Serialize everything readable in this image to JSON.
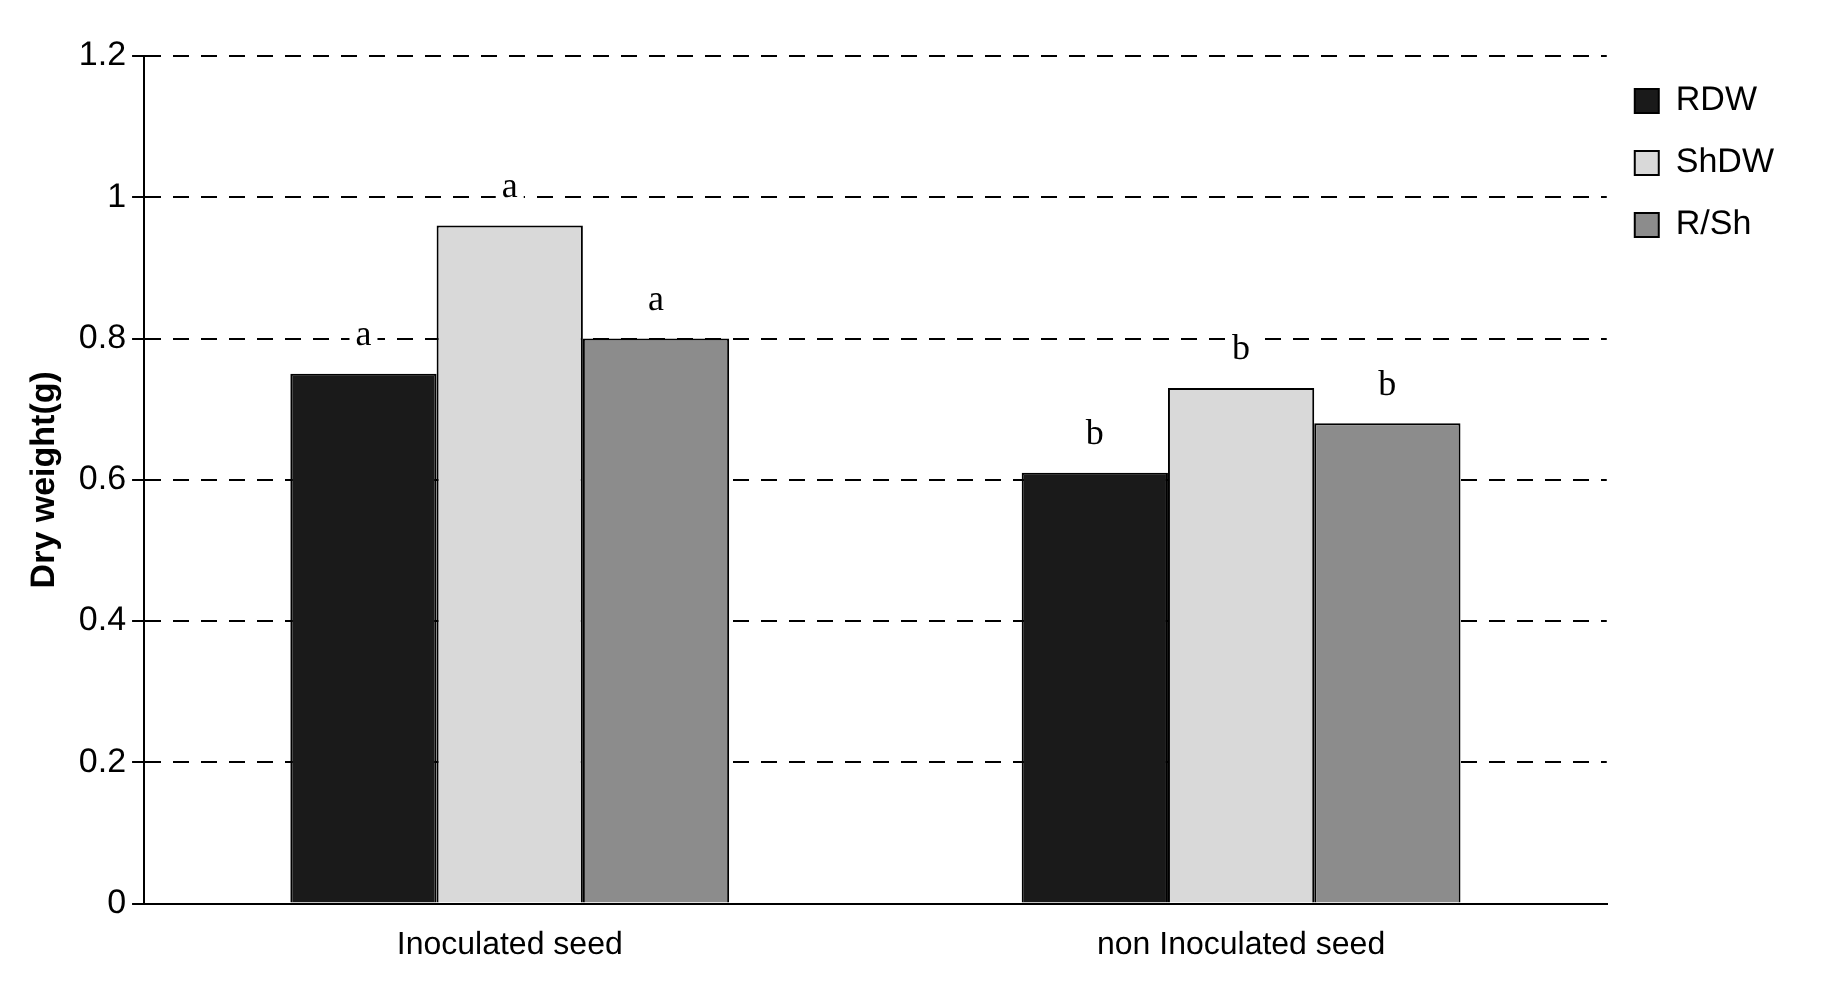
{
  "chart_data": {
    "type": "bar",
    "ylabel": "Dry weight(g)",
    "categories": [
      "Inoculated seed",
      "non Inoculated seed"
    ],
    "series": [
      {
        "name": "RDW",
        "color": "#1a1a1a",
        "values": [
          0.75,
          0.61
        ]
      },
      {
        "name": "ShDW",
        "color": "#d9d9d9",
        "values": [
          0.96,
          0.73
        ]
      },
      {
        "name": "R/Sh",
        "color": "#8c8c8c",
        "values": [
          0.8,
          0.68
        ]
      }
    ],
    "ylim": [
      0,
      1.2
    ],
    "yticks": [
      0,
      0.2,
      0.4,
      0.6,
      0.8,
      1,
      1.2
    ],
    "grid": "y",
    "legend": "top right",
    "annotations": [
      "a",
      "a",
      "a",
      "b",
      "b",
      "b"
    ]
  }
}
